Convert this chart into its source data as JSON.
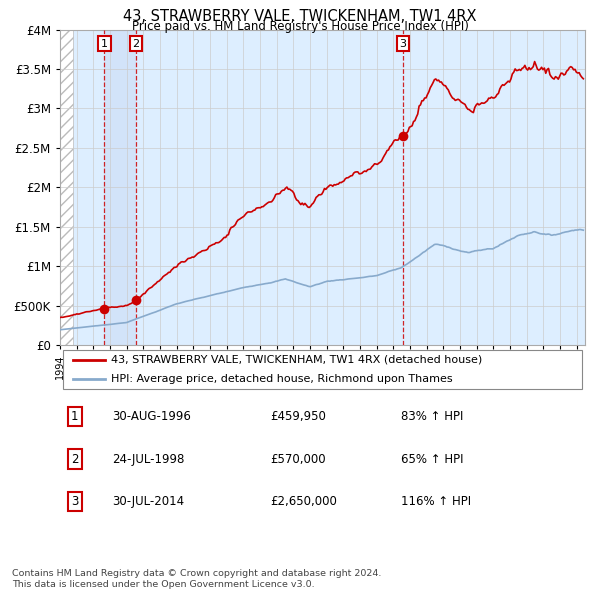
{
  "title": "43, STRAWBERRY VALE, TWICKENHAM, TW1 4RX",
  "subtitle": "Price paid vs. HM Land Registry's House Price Index (HPI)",
  "sales": [
    {
      "date": 1996.66,
      "price": 459950,
      "label": "1"
    },
    {
      "date": 1998.56,
      "price": 570000,
      "label": "2"
    },
    {
      "date": 2014.58,
      "price": 2650000,
      "label": "3"
    }
  ],
  "sale_dates_str": [
    "30-AUG-1996",
    "24-JUL-1998",
    "30-JUL-2014"
  ],
  "sale_prices_str": [
    "£459,950",
    "£570,000",
    "£2,650,000"
  ],
  "sale_hpi_str": [
    "83% ↑ HPI",
    "65% ↑ HPI",
    "116% ↑ HPI"
  ],
  "legend_property": "43, STRAWBERRY VALE, TWICKENHAM, TW1 4RX (detached house)",
  "legend_hpi": "HPI: Average price, detached house, Richmond upon Thames",
  "property_color": "#cc0000",
  "hpi_color": "#88aacc",
  "background_color": "#ddeeff",
  "xmin": 1994.0,
  "xmax": 2025.5,
  "ymin": 0,
  "ymax": 4000000,
  "yticks": [
    0,
    500000,
    1000000,
    1500000,
    2000000,
    2500000,
    3000000,
    3500000,
    4000000
  ],
  "ytick_labels": [
    "£0",
    "£500K",
    "£1M",
    "£1.5M",
    "£2M",
    "£2.5M",
    "£3M",
    "£3.5M",
    "£4M"
  ],
  "footer": "Contains HM Land Registry data © Crown copyright and database right 2024.\nThis data is licensed under the Open Government Licence v3.0.",
  "hatch_xmax": 1994.75,
  "highlight_between_sales": true
}
